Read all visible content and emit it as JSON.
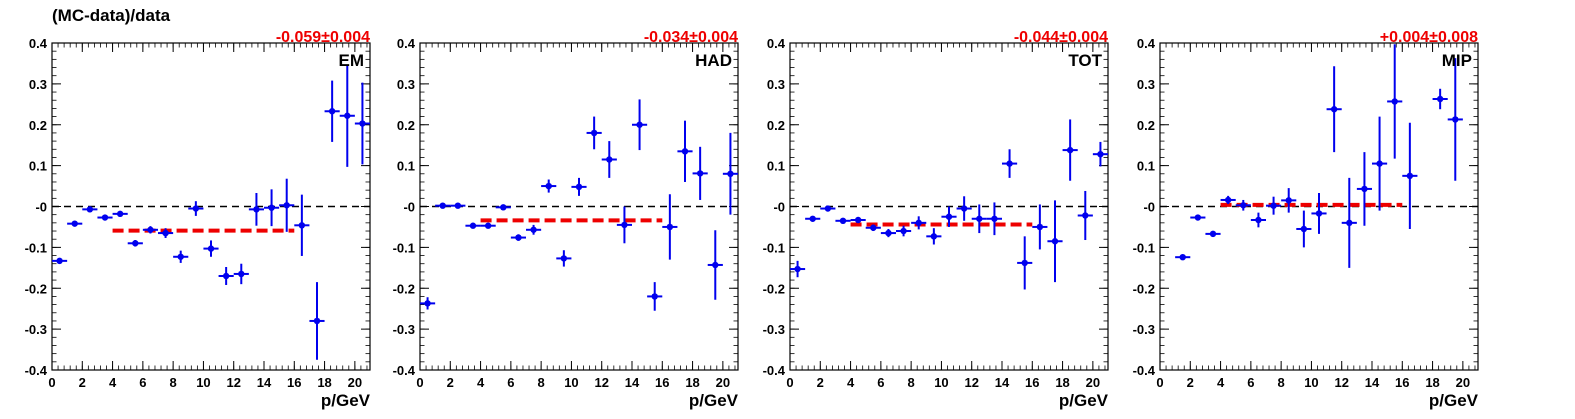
{
  "figure": {
    "ylabel": "(MC-data)/data",
    "xlabel": "p/GeV"
  },
  "chart_data": [
    {
      "type": "scatter",
      "panel_label": "EM",
      "fit_annotation": "-0.059±0.004",
      "fit_value": -0.059,
      "fit_range": [
        4,
        16
      ],
      "reference_line": 0,
      "xlim": [
        0,
        21
      ],
      "ylim": [
        -0.4,
        0.4
      ],
      "xticks": [
        "0",
        "2",
        "4",
        "6",
        "8",
        "10",
        "12",
        "14",
        "16",
        "18",
        "20"
      ],
      "yticks": [
        "-0.4",
        "-0.3",
        "-0.2",
        "-0.1",
        "-0",
        "0.1",
        "0.2",
        "0.3",
        "0.4"
      ],
      "xlabel": "p/GeV",
      "points": [
        {
          "x": 0.5,
          "y": -0.133,
          "yerr": 0.006
        },
        {
          "x": 1.5,
          "y": -0.042,
          "yerr": 0.005
        },
        {
          "x": 2.5,
          "y": -0.007,
          "yerr": 0.005
        },
        {
          "x": 3.5,
          "y": -0.027,
          "yerr": 0.006
        },
        {
          "x": 4.5,
          "y": -0.018,
          "yerr": 0.007
        },
        {
          "x": 5.5,
          "y": -0.09,
          "yerr": 0.008
        },
        {
          "x": 6.5,
          "y": -0.057,
          "yerr": 0.009
        },
        {
          "x": 7.5,
          "y": -0.065,
          "yerr": 0.012
        },
        {
          "x": 8.5,
          "y": -0.123,
          "yerr": 0.015
        },
        {
          "x": 9.5,
          "y": -0.005,
          "yerr": 0.018
        },
        {
          "x": 10.5,
          "y": -0.103,
          "yerr": 0.02
        },
        {
          "x": 11.5,
          "y": -0.17,
          "yerr": 0.022
        },
        {
          "x": 12.5,
          "y": -0.165,
          "yerr": 0.025
        },
        {
          "x": 13.5,
          "y": -0.007,
          "yerr": 0.04
        },
        {
          "x": 14.5,
          "y": -0.003,
          "yerr": 0.045
        },
        {
          "x": 15.5,
          "y": 0.003,
          "yerr": 0.065
        },
        {
          "x": 16.5,
          "y": -0.046,
          "yerr": 0.075
        },
        {
          "x": 17.5,
          "y": -0.28,
          "yerr": 0.095
        },
        {
          "x": 18.5,
          "y": 0.233,
          "yerr": 0.075
        },
        {
          "x": 19.5,
          "y": 0.222,
          "yerr": 0.125
        },
        {
          "x": 20.5,
          "y": 0.203,
          "yerr": 0.1
        }
      ]
    },
    {
      "type": "scatter",
      "panel_label": "HAD",
      "fit_annotation": "-0.034±0.004",
      "fit_value": -0.034,
      "fit_range": [
        4,
        16
      ],
      "reference_line": 0,
      "xlim": [
        0,
        21
      ],
      "ylim": [
        -0.4,
        0.4
      ],
      "xticks": [
        "0",
        "2",
        "4",
        "6",
        "8",
        "10",
        "12",
        "14",
        "16",
        "18",
        "20"
      ],
      "yticks": [
        "-0.4",
        "-0.3",
        "-0.2",
        "-0.1",
        "-0",
        "0.1",
        "0.2",
        "0.3",
        "0.4"
      ],
      "xlabel": "p/GeV",
      "points": [
        {
          "x": 0.5,
          "y": -0.237,
          "yerr": 0.015
        },
        {
          "x": 1.5,
          "y": 0.002,
          "yerr": 0.004
        },
        {
          "x": 2.5,
          "y": 0.002,
          "yerr": 0.004
        },
        {
          "x": 3.5,
          "y": -0.047,
          "yerr": 0.005
        },
        {
          "x": 4.5,
          "y": -0.047,
          "yerr": 0.006
        },
        {
          "x": 5.5,
          "y": -0.002,
          "yerr": 0.006
        },
        {
          "x": 6.5,
          "y": -0.076,
          "yerr": 0.008
        },
        {
          "x": 7.5,
          "y": -0.057,
          "yerr": 0.012
        },
        {
          "x": 8.5,
          "y": 0.05,
          "yerr": 0.016
        },
        {
          "x": 9.5,
          "y": -0.127,
          "yerr": 0.02
        },
        {
          "x": 10.5,
          "y": 0.048,
          "yerr": 0.022
        },
        {
          "x": 11.5,
          "y": 0.18,
          "yerr": 0.04
        },
        {
          "x": 12.5,
          "y": 0.115,
          "yerr": 0.045
        },
        {
          "x": 13.5,
          "y": -0.045,
          "yerr": 0.045
        },
        {
          "x": 14.5,
          "y": 0.2,
          "yerr": 0.062
        },
        {
          "x": 15.5,
          "y": -0.22,
          "yerr": 0.035
        },
        {
          "x": 16.5,
          "y": -0.05,
          "yerr": 0.08
        },
        {
          "x": 17.5,
          "y": 0.135,
          "yerr": 0.075
        },
        {
          "x": 18.5,
          "y": 0.081,
          "yerr": 0.065
        },
        {
          "x": 19.5,
          "y": -0.143,
          "yerr": 0.085
        },
        {
          "x": 20.5,
          "y": 0.08,
          "yerr": 0.1
        }
      ]
    },
    {
      "type": "scatter",
      "panel_label": "TOT",
      "fit_annotation": "-0.044±0.004",
      "fit_value": -0.044,
      "fit_range": [
        4,
        16
      ],
      "reference_line": 0,
      "xlim": [
        0,
        21
      ],
      "ylim": [
        -0.4,
        0.4
      ],
      "xticks": [
        "0",
        "2",
        "4",
        "6",
        "8",
        "10",
        "12",
        "14",
        "16",
        "18",
        "20"
      ],
      "yticks": [
        "-0.4",
        "-0.3",
        "-0.2",
        "-0.1",
        "-0",
        "0.1",
        "0.2",
        "0.3",
        "0.4"
      ],
      "xlabel": "p/GeV",
      "points": [
        {
          "x": 0.5,
          "y": -0.153,
          "yerr": 0.02
        },
        {
          "x": 1.5,
          "y": -0.03,
          "yerr": 0.006
        },
        {
          "x": 2.5,
          "y": -0.005,
          "yerr": 0.005
        },
        {
          "x": 3.5,
          "y": -0.035,
          "yerr": 0.005
        },
        {
          "x": 4.5,
          "y": -0.033,
          "yerr": 0.006
        },
        {
          "x": 5.5,
          "y": -0.052,
          "yerr": 0.008
        },
        {
          "x": 6.5,
          "y": -0.065,
          "yerr": 0.01
        },
        {
          "x": 7.5,
          "y": -0.06,
          "yerr": 0.013
        },
        {
          "x": 8.5,
          "y": -0.04,
          "yerr": 0.016
        },
        {
          "x": 9.5,
          "y": -0.073,
          "yerr": 0.02
        },
        {
          "x": 10.5,
          "y": -0.025,
          "yerr": 0.025
        },
        {
          "x": 11.5,
          "y": -0.005,
          "yerr": 0.03
        },
        {
          "x": 12.5,
          "y": -0.03,
          "yerr": 0.035
        },
        {
          "x": 13.5,
          "y": -0.03,
          "yerr": 0.04
        },
        {
          "x": 14.5,
          "y": 0.105,
          "yerr": 0.035
        },
        {
          "x": 15.5,
          "y": -0.138,
          "yerr": 0.065
        },
        {
          "x": 16.5,
          "y": -0.05,
          "yerr": 0.055
        },
        {
          "x": 17.5,
          "y": -0.085,
          "yerr": 0.1
        },
        {
          "x": 18.5,
          "y": 0.138,
          "yerr": 0.075
        },
        {
          "x": 19.5,
          "y": -0.022,
          "yerr": 0.06
        },
        {
          "x": 20.5,
          "y": 0.128,
          "yerr": 0.03
        }
      ]
    },
    {
      "type": "scatter",
      "panel_label": "MIP",
      "fit_annotation": "+0.004±0.008",
      "fit_value": 0.004,
      "fit_range": [
        4,
        16
      ],
      "reference_line": 0,
      "xlim": [
        0,
        21
      ],
      "ylim": [
        -0.4,
        0.4
      ],
      "xticks": [
        "0",
        "2",
        "4",
        "6",
        "8",
        "10",
        "12",
        "14",
        "16",
        "18",
        "20"
      ],
      "yticks": [
        "-0.4",
        "-0.3",
        "-0.2",
        "-0.1",
        "-0",
        "0.1",
        "0.2",
        "0.3",
        "0.4"
      ],
      "xlabel": "p/GeV",
      "points": [
        {
          "x": 1.5,
          "y": -0.124,
          "yerr": 0.006
        },
        {
          "x": 2.5,
          "y": -0.027,
          "yerr": 0.007
        },
        {
          "x": 3.5,
          "y": -0.067,
          "yerr": 0.007
        },
        {
          "x": 4.5,
          "y": 0.016,
          "yerr": 0.01
        },
        {
          "x": 5.5,
          "y": 0.003,
          "yerr": 0.013
        },
        {
          "x": 6.5,
          "y": -0.033,
          "yerr": 0.018
        },
        {
          "x": 7.5,
          "y": 0.002,
          "yerr": 0.022
        },
        {
          "x": 8.5,
          "y": 0.015,
          "yerr": 0.03
        },
        {
          "x": 9.5,
          "y": -0.055,
          "yerr": 0.045
        },
        {
          "x": 10.5,
          "y": -0.017,
          "yerr": 0.05
        },
        {
          "x": 11.5,
          "y": 0.238,
          "yerr": 0.105
        },
        {
          "x": 12.5,
          "y": -0.04,
          "yerr": 0.11
        },
        {
          "x": 13.5,
          "y": 0.043,
          "yerr": 0.09
        },
        {
          "x": 14.5,
          "y": 0.105,
          "yerr": 0.115
        },
        {
          "x": 15.5,
          "y": 0.257,
          "yerr": 0.14
        },
        {
          "x": 16.5,
          "y": 0.075,
          "yerr": 0.13
        },
        {
          "x": 18.5,
          "y": 0.263,
          "yerr": 0.025
        },
        {
          "x": 19.5,
          "y": 0.213,
          "yerr": 0.15
        }
      ]
    }
  ],
  "colors": {
    "points": "#0000ee",
    "fit_line": "#ee0000",
    "annotation": "#ee0000",
    "reference_line": "#000000"
  }
}
